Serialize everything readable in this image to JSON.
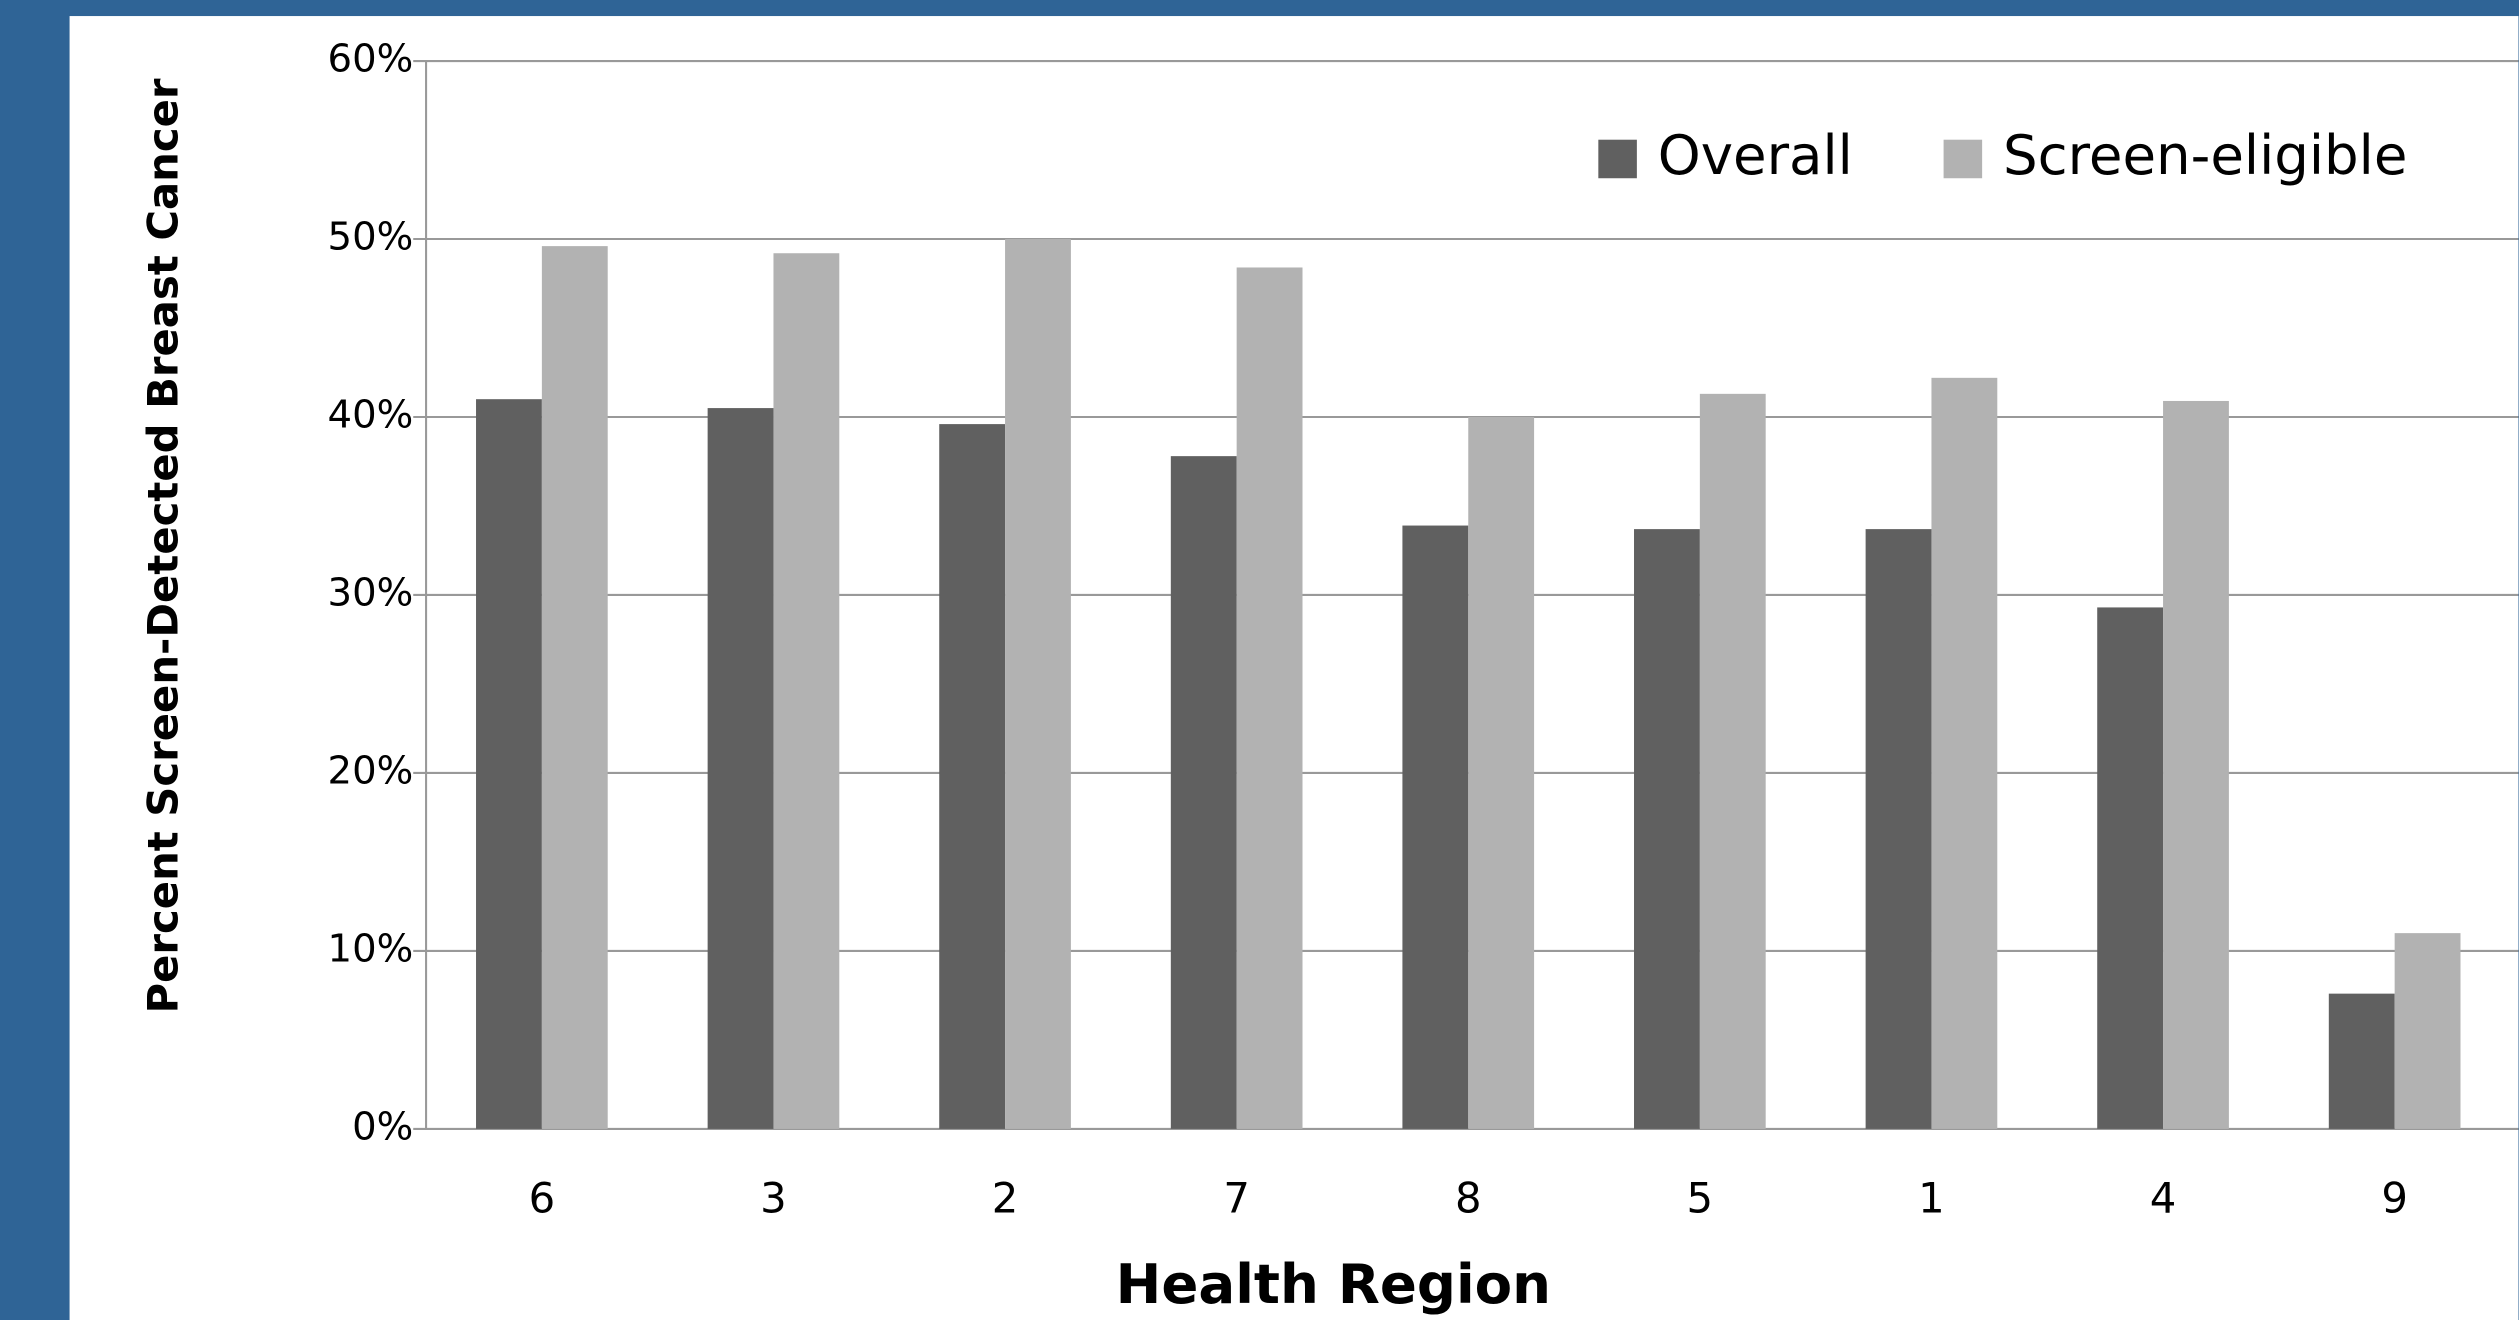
{
  "chart_data": {
    "type": "bar",
    "x_label": "Health Region",
    "y_label": "Percent Screen-Detected Breast Cancer",
    "categories": [
      "6",
      "3",
      "2",
      "7",
      "8",
      "5",
      "1",
      "4",
      "9"
    ],
    "series": [
      {
        "name": "Overall",
        "color": "#606060",
        "values": [
          41.0,
          40.5,
          39.6,
          37.8,
          33.9,
          33.7,
          33.7,
          29.3,
          7.6
        ]
      },
      {
        "name": "Screen-eligible",
        "color": "#b2b2b2",
        "values": [
          49.6,
          49.2,
          50.0,
          48.4,
          40.0,
          41.3,
          42.2,
          40.9,
          11.0
        ]
      }
    ],
    "ylim": [
      0,
      60
    ],
    "yticks": [
      {
        "value": 0,
        "label": "0%"
      },
      {
        "value": 10,
        "label": "10%"
      },
      {
        "value": 20,
        "label": "20%"
      },
      {
        "value": 30,
        "label": "30%"
      },
      {
        "value": 40,
        "label": "40%"
      },
      {
        "value": 50,
        "label": "50%"
      },
      {
        "value": 60,
        "label": "60%"
      }
    ],
    "grid": true,
    "legend": "top-right"
  }
}
